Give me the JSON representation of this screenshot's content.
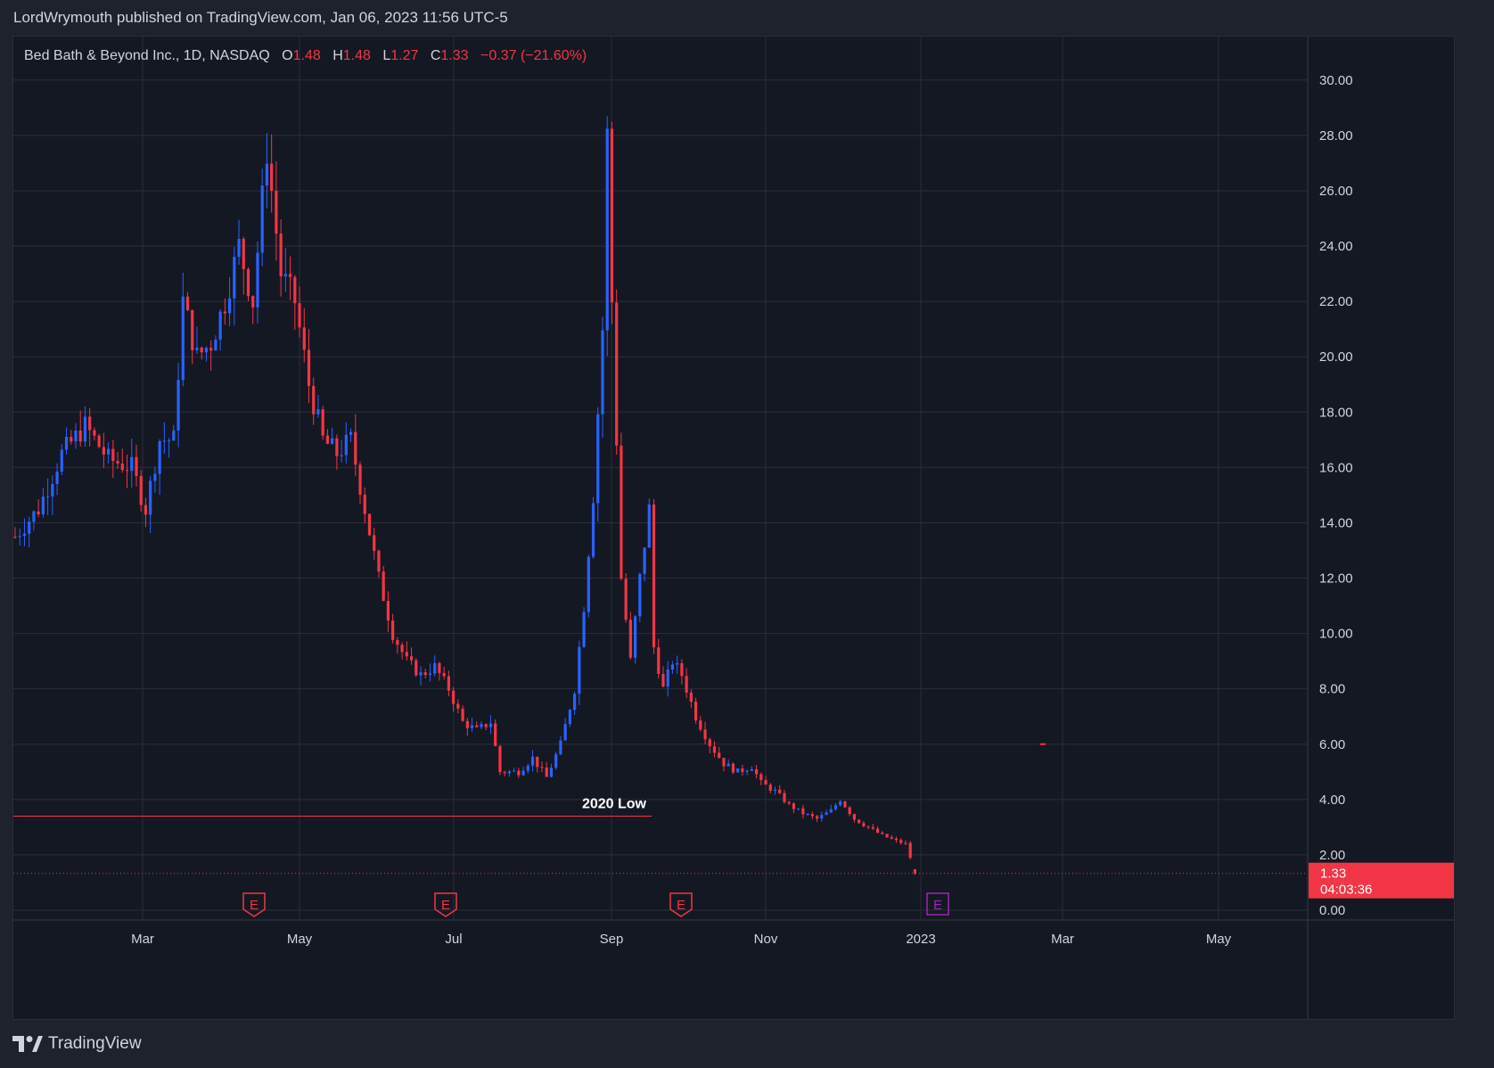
{
  "publication": {
    "text": "LordWrymouth published on TradingView.com, Jan 06, 2023 11:56 UTC-5"
  },
  "legend": {
    "symbol": "Bed Bath & Beyond Inc., 1D, NASDAQ",
    "open_label": "O",
    "open": "1.48",
    "high_label": "H",
    "high": "1.48",
    "low_label": "L",
    "low": "1.27",
    "close_label": "C",
    "close": "1.33",
    "change": "−0.37 (−21.60%)"
  },
  "brand": {
    "name": "TradingView"
  },
  "colors": {
    "up": "#2962ff",
    "down": "#f23645",
    "background": "#141823",
    "grid": "#2a2e39",
    "text": "#d1d4dc",
    "earnings_upcoming": "#9c27b0"
  },
  "chart_data": {
    "type": "candlestick",
    "y_ticks": [
      "30.00",
      "28.00",
      "26.00",
      "24.00",
      "22.00",
      "20.00",
      "18.00",
      "16.00",
      "14.00",
      "12.00",
      "10.00",
      "8.00",
      "6.00",
      "4.00",
      "2.00",
      "0.00"
    ],
    "ylim": [
      0,
      30
    ],
    "x_ticks": [
      "Mar",
      "May",
      "Jul",
      "Sep",
      "Nov",
      "2023",
      "Mar",
      "May"
    ],
    "price_label": {
      "value": "1.33",
      "countdown": "04:03:36"
    },
    "annotation": {
      "text": "2020 Low",
      "price": 3.4
    },
    "earnings_markers": [
      {
        "label": "E",
        "time": "Apr",
        "status": "past"
      },
      {
        "label": "E",
        "time": "Jul",
        "status": "past"
      },
      {
        "label": "E",
        "time": "Sep",
        "status": "past"
      },
      {
        "label": "E",
        "time": "Jan",
        "status": "upcoming"
      }
    ],
    "price_path": [
      [
        0,
        13.5
      ],
      [
        5,
        14.5
      ],
      [
        10,
        16.5
      ],
      [
        15,
        17.5
      ],
      [
        20,
        16.3
      ],
      [
        25,
        16.0
      ],
      [
        28,
        14.5
      ],
      [
        31,
        17.0
      ],
      [
        34,
        17.0
      ],
      [
        36,
        22
      ],
      [
        39,
        20
      ],
      [
        42,
        20.5
      ],
      [
        45,
        22
      ],
      [
        48,
        24
      ],
      [
        51,
        22
      ],
      [
        54,
        27.5
      ],
      [
        57,
        23
      ],
      [
        60,
        22
      ],
      [
        63,
        19
      ],
      [
        66,
        17
      ],
      [
        69,
        16.5
      ],
      [
        72,
        17
      ],
      [
        75,
        14.5
      ],
      [
        78,
        12
      ],
      [
        81,
        10
      ],
      [
        84,
        9
      ],
      [
        87,
        8.5
      ],
      [
        90,
        8.8
      ],
      [
        93,
        8
      ],
      [
        96,
        6.8
      ],
      [
        99,
        6.5
      ],
      [
        102,
        6.8
      ],
      [
        104,
        5.0
      ],
      [
        108,
        5.0
      ],
      [
        111,
        5.5
      ],
      [
        114,
        4.8
      ],
      [
        117,
        6
      ],
      [
        120,
        8
      ],
      [
        122,
        11
      ],
      [
        124,
        15
      ],
      [
        126,
        21
      ],
      [
        127,
        28
      ],
      [
        128,
        22
      ],
      [
        129,
        17
      ],
      [
        130,
        12
      ],
      [
        132,
        9
      ],
      [
        134,
        12
      ],
      [
        136,
        14.5
      ],
      [
        137,
        9.5
      ],
      [
        139,
        8
      ],
      [
        141,
        9
      ],
      [
        143,
        8.5
      ],
      [
        146,
        7
      ],
      [
        149,
        6
      ],
      [
        152,
        5.3
      ],
      [
        155,
        5
      ],
      [
        158,
        5.2
      ],
      [
        160,
        4.6
      ],
      [
        163,
        4.3
      ],
      [
        166,
        3.8
      ],
      [
        169,
        3.5
      ],
      [
        172,
        3.3
      ],
      [
        175,
        3.6
      ],
      [
        177,
        4.0
      ],
      [
        180,
        3.3
      ],
      [
        183,
        3.0
      ],
      [
        186,
        2.7
      ],
      [
        189,
        2.5
      ],
      [
        191,
        2.4
      ],
      [
        192,
        1.9
      ],
      [
        193,
        1.33
      ]
    ]
  }
}
